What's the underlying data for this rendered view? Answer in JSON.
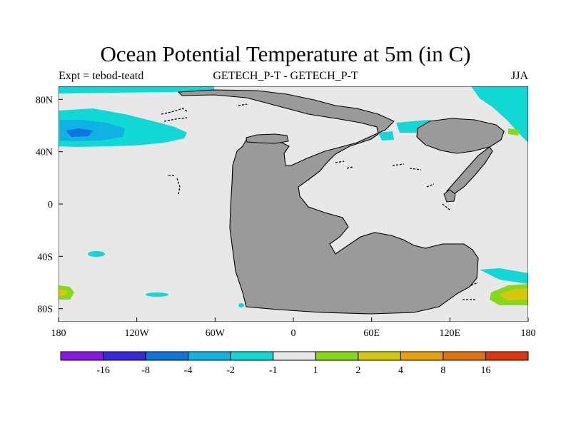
{
  "title": "Ocean Potential Temperature at 5m (in C)",
  "subtitle_left": "Expt = tebod-teatd",
  "subtitle_center": "GETECH_P-T - GETECH_P-T",
  "subtitle_right": "JJA",
  "map": {
    "projection": "cylindrical-equidistant",
    "lon_range": [
      -180,
      180
    ],
    "lat_range": [
      -90,
      90
    ],
    "x_ticks": [
      {
        "value": -180,
        "label": "180"
      },
      {
        "value": -120,
        "label": "120W"
      },
      {
        "value": -60,
        "label": "60W"
      },
      {
        "value": 0,
        "label": "0"
      },
      {
        "value": 60,
        "label": "60E"
      },
      {
        "value": 120,
        "label": "120E"
      },
      {
        "value": 180,
        "label": "180"
      }
    ],
    "y_ticks": [
      {
        "value": 80,
        "label": "80N"
      },
      {
        "value": 40,
        "label": "40N"
      },
      {
        "value": 0,
        "label": "0"
      },
      {
        "value": -40,
        "label": "40S"
      },
      {
        "value": -80,
        "label": "80S"
      }
    ],
    "land_color": "#9a9a9a",
    "background_color": "#e8e8e8"
  },
  "colorbar": {
    "colors": [
      "#8a17e6",
      "#3a27e0",
      "#0f74df",
      "#10b2e4",
      "#0fd8d5",
      "#e8e8e8",
      "#86d818",
      "#d6c80f",
      "#e8a00b",
      "#e2720d",
      "#e0350c"
    ],
    "labels": [
      "-16",
      "-8",
      "-4",
      "-2",
      "-1",
      "1",
      "2",
      "4",
      "8",
      "16"
    ]
  }
}
